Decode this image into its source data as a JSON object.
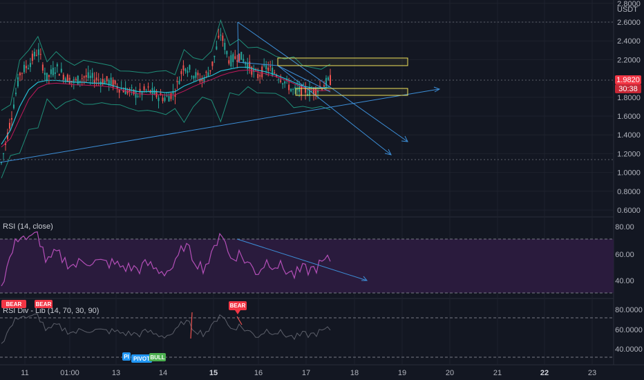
{
  "colors": {
    "background": "#131722",
    "grid": "#1e222d",
    "candle_up": "#26a69a",
    "candle_down": "#ef5350",
    "bollinger": "#1f8f79",
    "ma_line": "#27c0d6",
    "ma_slow": "#c2185b",
    "trendline": "#3d8fd8",
    "zone_border": "#f2e35a",
    "rsi_line": "#b44fb8",
    "rsi_band": "#2a1b3d",
    "price_tag": "#f23645",
    "bear_badge": "#f23645",
    "bull_badge": "#4caf50",
    "pivot_badge": "#2196f3"
  },
  "price_axis": {
    "unit_label": "USDT",
    "ticks": [
      "2.8000",
      "2.6000",
      "2.4000",
      "2.2000",
      "1.8000",
      "1.6000",
      "1.4000",
      "1.2000",
      "1.0000",
      "0.8000",
      "0.6000"
    ],
    "current_price": "1.9820",
    "countdown": "30:38"
  },
  "time_axis": {
    "ticks": [
      "11",
      "01:00",
      "13",
      "14",
      "15",
      "16",
      "17",
      "18",
      "19",
      "20",
      "21",
      "22",
      "23"
    ]
  },
  "rsi_panel": {
    "title": "RSI (14, close)",
    "ticks": [
      "80.00",
      "60.00",
      "40.00"
    ]
  },
  "rsi_div_panel": {
    "title": "RSI Div - Lib (14, 70, 30, 90)",
    "ticks": [
      "80.0000",
      "60.0000",
      "40.0000"
    ],
    "badges": [
      {
        "text": "BEAR",
        "kind": "bear"
      },
      {
        "text": "BEAR",
        "kind": "bear"
      },
      {
        "text": "PIVOT",
        "kind": "pivot"
      },
      {
        "text": "BULL",
        "kind": "bull"
      },
      {
        "text": "PI",
        "kind": "pivot"
      }
    ]
  },
  "chart_data": {
    "type": "line",
    "title": "",
    "x_unit": "date",
    "series": [
      {
        "values": [
          1.1,
          1.55,
          2.05,
          2.15,
          2.3,
          2.0,
          2.12,
          2.02,
          1.96,
          2.02,
          2.0,
          1.98,
          1.96,
          1.9,
          1.86,
          1.83,
          1.88,
          1.82,
          1.79,
          1.86,
          2.15,
          2.05,
          1.98,
          2.12,
          2.48,
          2.18,
          2.25,
          2.15,
          2.02,
          2.12,
          2.06,
          1.97,
          1.86,
          1.88,
          1.86,
          1.92,
          1.98
        ]
      },
      {
        "values": [
          1.3,
          1.45,
          1.7,
          1.88,
          1.96,
          1.98,
          1.98,
          1.97,
          1.96,
          1.96,
          1.95,
          1.95,
          1.93,
          1.9,
          1.88,
          1.86,
          1.86,
          1.86,
          1.85,
          1.86,
          1.92,
          1.96,
          2.0,
          2.03,
          2.08,
          2.1,
          2.12,
          2.12,
          2.09,
          2.07,
          2.04,
          2.0,
          1.96,
          1.92,
          1.9,
          1.9,
          1.91
        ]
      }
    ],
    "ylim": [
      0.5,
      2.85
    ],
    "grid": true
  }
}
